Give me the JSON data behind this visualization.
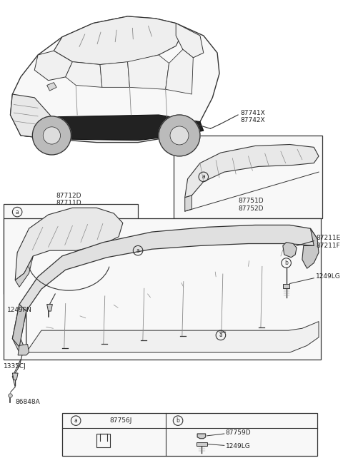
{
  "bg_color": "#ffffff",
  "line_color": "#333333",
  "light_gray": "#e8e8e8",
  "mid_gray": "#cccccc",
  "dark_gray": "#888888",
  "label_87741X": "87741X",
  "label_87742X": "87742X",
  "label_87711D": "87711D",
  "label_87712D": "87712D",
  "label_87751D": "87751D",
  "label_87752D": "87752D",
  "label_1249PN": "1249PN",
  "label_1335CJ": "1335CJ",
  "label_87211E": "87211E",
  "label_87211F": "87211F",
  "label_1249LG": "1249LG",
  "label_86848A": "86848A",
  "label_87756J": "87756J",
  "label_87759D": "87759D",
  "label_1249LG_b": "1249LG",
  "fs_label": 6.5,
  "fs_circle": 5.5
}
